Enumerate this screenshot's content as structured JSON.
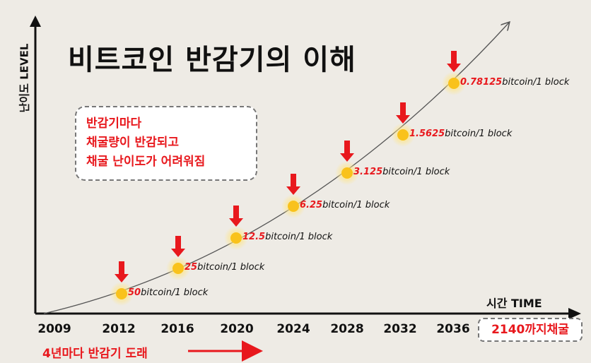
{
  "title": "비트코인 반감기의 이해",
  "y_axis_label": "난이도 LEVEL",
  "x_axis_label": "시간 TIME",
  "info_box": {
    "lines": [
      "반감기마다",
      "채굴량이 반감되고",
      "채굴 난이도가 어려워짐"
    ]
  },
  "years": [
    "2009",
    "2012",
    "2016",
    "2020",
    "2024",
    "2028",
    "2032",
    "2036"
  ],
  "end_label": "2140까지채굴",
  "bottom_note": "4년마다 반감기 도래",
  "halvings": [
    {
      "value": "50",
      "unit": "bitcoin/1 block"
    },
    {
      "value": "25",
      "unit": "bitcoin/1 block"
    },
    {
      "value": "12.5",
      "unit": "bitcoin/1 block"
    },
    {
      "value": "6.25",
      "unit": "bitcoin/1 block"
    },
    {
      "value": "3.125",
      "unit": "bitcoin/1 block"
    },
    {
      "value": "1.5625",
      "unit": "bitcoin/1 block"
    },
    {
      "value": "0.78125",
      "unit": "bitcoin/1 block"
    }
  ],
  "colors": {
    "accent": "#e8181d",
    "marker": "#f9c21c",
    "background": "#eeebe5"
  }
}
